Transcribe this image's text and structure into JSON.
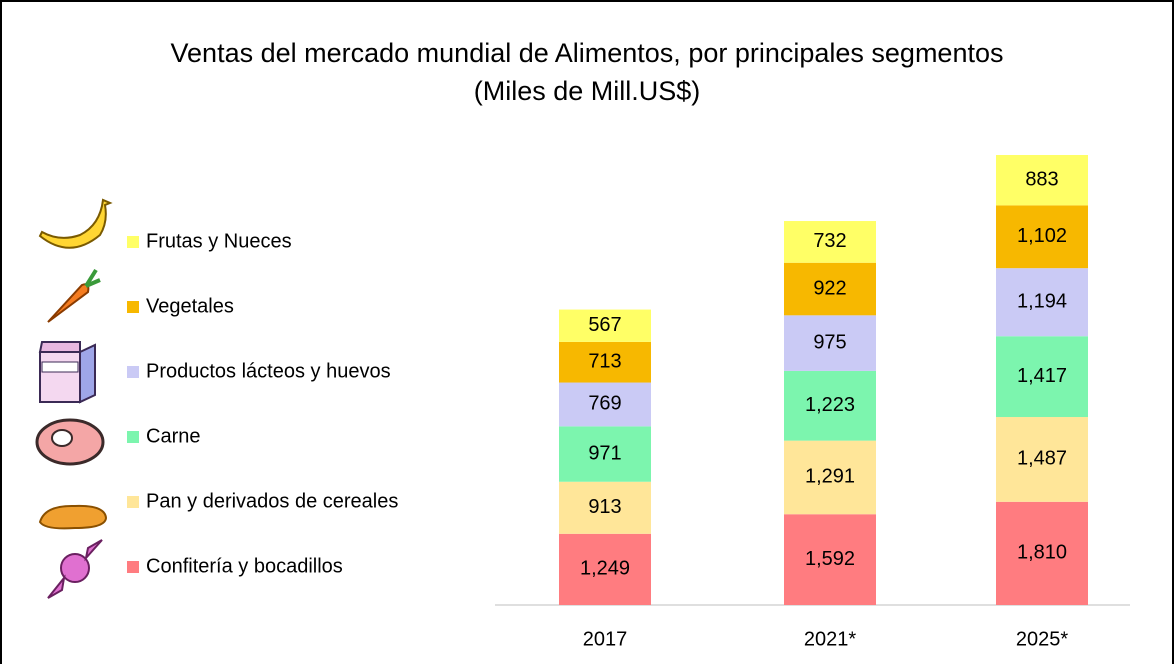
{
  "chart_data": {
    "type": "stacked_bar",
    "title": "Ventas del mercado mundial de Alimentos, por principales segmentos",
    "subtitle": "(Miles de Mill.US$)",
    "categories": [
      "2017",
      "2021*",
      "2025*"
    ],
    "series": [
      {
        "name": "Confitería y bocadillos",
        "color": "#ff7c80",
        "values": [
          1249,
          1592,
          1810
        ],
        "value_labels": [
          "1,249",
          "1,592",
          "1,810"
        ]
      },
      {
        "name": "Pan y derivados de cereales",
        "color": "#ffe699",
        "values": [
          913,
          1291,
          1487
        ],
        "value_labels": [
          "913",
          "1,291",
          "1,487"
        ]
      },
      {
        "name": "Carne",
        "color": "#7cf5ae",
        "values": [
          971,
          1223,
          1417
        ],
        "value_labels": [
          "971",
          "1,223",
          "1,417"
        ]
      },
      {
        "name": "Productos lácteos y huevos",
        "color": "#cacaf5",
        "values": [
          769,
          975,
          1194
        ],
        "value_labels": [
          "769",
          "975",
          "1,194"
        ]
      },
      {
        "name": "Vegetales",
        "color": "#f7b800",
        "values": [
          713,
          922,
          1102
        ],
        "value_labels": [
          "713",
          "922",
          "1,102"
        ]
      },
      {
        "name": "Frutas y Nueces",
        "color": "#ffff66",
        "values": [
          567,
          732,
          883
        ],
        "value_labels": [
          "567",
          "732",
          "883"
        ]
      }
    ]
  }
}
